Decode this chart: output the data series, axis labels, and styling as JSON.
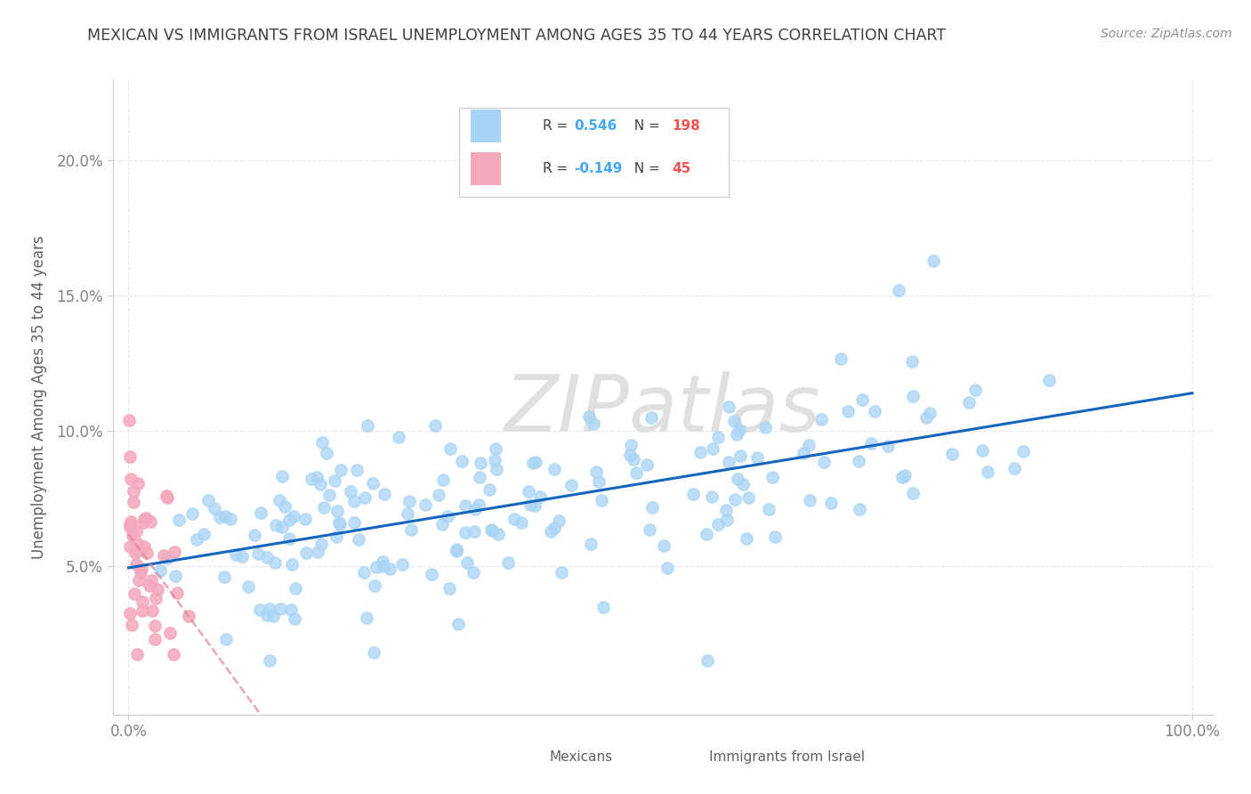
{
  "title": "MEXICAN VS IMMIGRANTS FROM ISRAEL UNEMPLOYMENT AMONG AGES 35 TO 44 YEARS CORRELATION CHART",
  "source": "Source: ZipAtlas.com",
  "ylabel": "Unemployment Among Ages 35 to 44 years",
  "ytick_labels": [
    "5.0%",
    "10.0%",
    "15.0%",
    "20.0%"
  ],
  "ytick_values": [
    0.05,
    0.1,
    0.15,
    0.2
  ],
  "ymin": 0.0,
  "ymax": 0.22,
  "xmin": 0.0,
  "xmax": 1.0,
  "legend_entries": [
    {
      "label": "Mexicans",
      "color": "#a8d4f5",
      "R": 0.546,
      "N": 198
    },
    {
      "label": "Immigrants from Israel",
      "color": "#f5a8bb",
      "R": -0.149,
      "N": 45
    }
  ],
  "mexican_scatter_color": "#a8d4f5",
  "israel_scatter_color": "#f5a8bb",
  "mexican_line_color": "#1565C0",
  "israel_line_color": "#e08090",
  "watermark_text": "ZIPatlas",
  "watermark_color": "#e0e0e0",
  "background_color": "#ffffff",
  "grid_color": "#e8e8e8",
  "grid_style": "--",
  "title_color": "#404040",
  "source_color": "#909090",
  "R_color": "#42a5f5",
  "N_color": "#ef5350",
  "legend_label_color": "#606060",
  "axis_label_color": "#606060",
  "tick_color": "#808080"
}
